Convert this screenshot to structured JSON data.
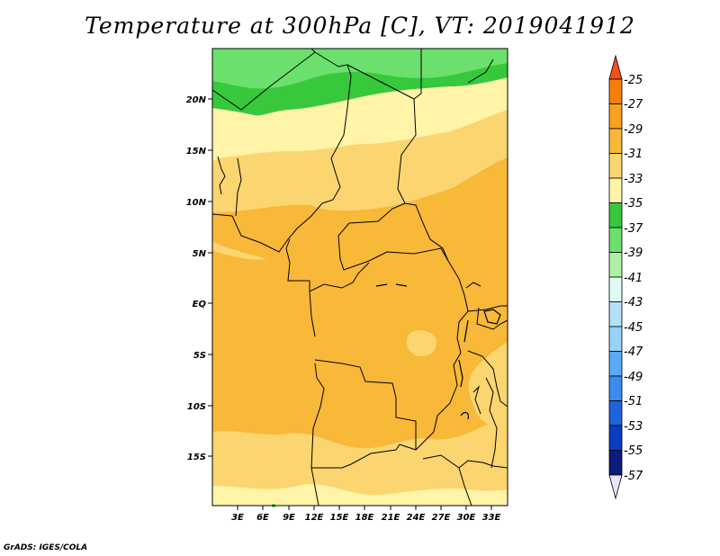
{
  "title": "Temperature at 300hPa [C], VT: 2019041912",
  "credit": "GrADS: IGES/COLA",
  "map": {
    "lat_ticks": [
      "20N",
      "15N",
      "10N",
      "5N",
      "EQ",
      "5S",
      "10S",
      "15S"
    ],
    "lon_ticks": [
      "3E",
      "6E",
      "9E",
      "12E",
      "15E",
      "18E",
      "21E",
      "24E",
      "27E",
      "30E",
      "33E"
    ]
  },
  "colorbar": {
    "labels": [
      "-25",
      "-27",
      "-29",
      "-31",
      "-33",
      "-35",
      "-37",
      "-39",
      "-41",
      "-43",
      "-45",
      "-47",
      "-49",
      "-51",
      "-53",
      "-55",
      "-57"
    ],
    "colors": [
      "#f0501e",
      "#f57f0b",
      "#f7a11c",
      "#f8b838",
      "#fbd570",
      "#fff4a8",
      "#37c83c",
      "#6ce06c",
      "#aef0a6",
      "#e0fbf5",
      "#b4e0fa",
      "#96d2fa",
      "#5aabf6",
      "#3c8cf0",
      "#1e64dc",
      "#0a3cc2",
      "#0a1c7c",
      "#e6e6fb"
    ]
  }
}
